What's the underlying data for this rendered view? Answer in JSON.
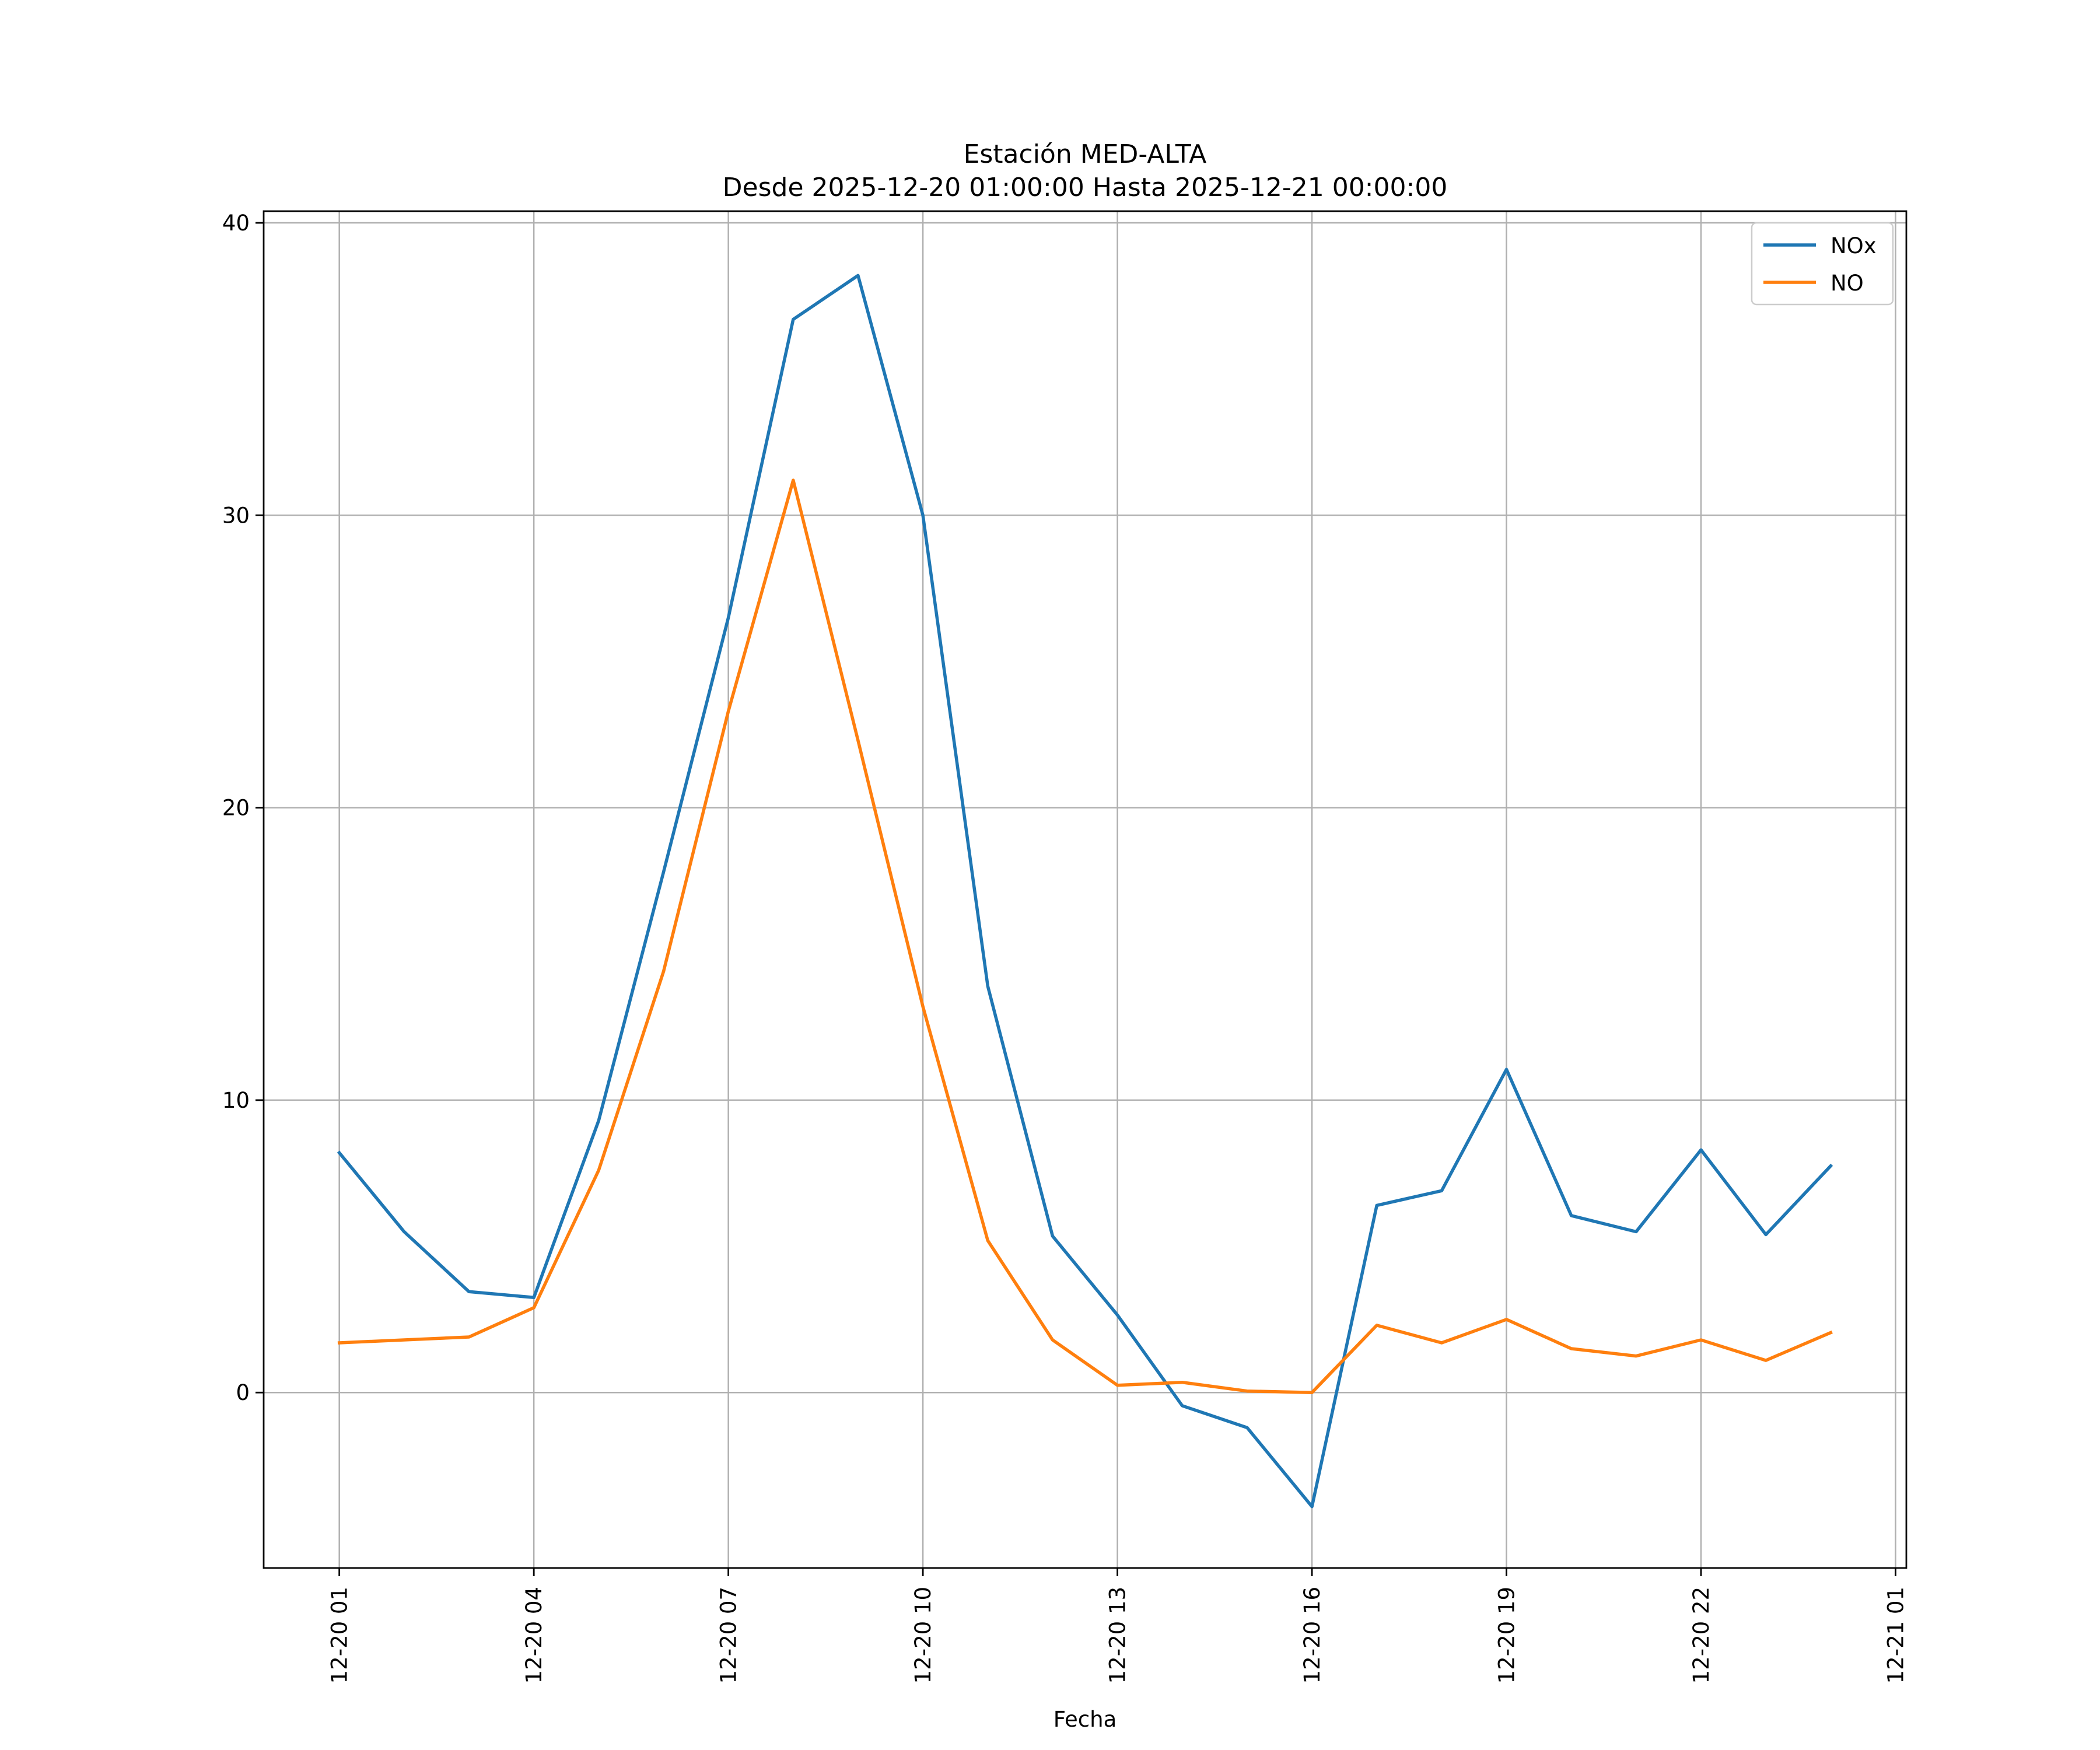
{
  "chart_data": {
    "type": "line",
    "title": "Estación MED-ALTA",
    "subtitle": "Desde 2025-12-20 01:00:00 Hasta 2025-12-21 00:00:00",
    "xlabel": "Fecha",
    "ylabel": "",
    "x": [
      "2025-12-20 01:00",
      "2025-12-20 02:00",
      "2025-12-20 03:00",
      "2025-12-20 04:00",
      "2025-12-20 05:00",
      "2025-12-20 06:00",
      "2025-12-20 07:00",
      "2025-12-20 08:00",
      "2025-12-20 09:00",
      "2025-12-20 10:00",
      "2025-12-20 11:00",
      "2025-12-20 12:00",
      "2025-12-20 13:00",
      "2025-12-20 14:00",
      "2025-12-20 15:00",
      "2025-12-20 16:00",
      "2025-12-20 17:00",
      "2025-12-20 18:00",
      "2025-12-20 19:00",
      "2025-12-20 20:00",
      "2025-12-20 21:00",
      "2025-12-20 22:00",
      "2025-12-20 23:00",
      "2025-12-21 00:00"
    ],
    "series": [
      {
        "name": "NOx",
        "color": "#1f77b4",
        "values": [
          8.2,
          5.5,
          3.45,
          3.25,
          9.3,
          17.8,
          26.5,
          36.7,
          38.2,
          30.0,
          13.9,
          5.35,
          2.65,
          -0.45,
          -1.2,
          -3.9,
          6.4,
          6.9,
          11.05,
          6.05,
          5.5,
          8.3,
          5.4,
          7.75
        ]
      },
      {
        "name": "NO",
        "color": "#ff7f0e",
        "values": [
          1.7,
          1.8,
          1.9,
          2.9,
          7.6,
          14.4,
          23.3,
          31.2,
          22.3,
          13.2,
          5.2,
          1.8,
          0.25,
          0.35,
          0.05,
          0.0,
          2.3,
          1.7,
          2.5,
          1.5,
          1.25,
          1.8,
          1.1,
          2.05
        ]
      }
    ],
    "xticks": [
      "12-20 01",
      "12-20 04",
      "12-20 07",
      "12-20 10",
      "12-20 13",
      "12-20 16",
      "12-20 19",
      "12-20 22",
      "12-21 01"
    ],
    "xtick_times": [
      "2025-12-20 01:00",
      "2025-12-20 04:00",
      "2025-12-20 07:00",
      "2025-12-20 10:00",
      "2025-12-20 13:00",
      "2025-12-20 16:00",
      "2025-12-20 19:00",
      "2025-12-20 22:00",
      "2025-12-21 01:00"
    ],
    "yticks": [
      0,
      10,
      20,
      30,
      40
    ],
    "xlim": [
      "2025-12-19 23:50",
      "2025-12-21 01:10"
    ],
    "ylim": [
      -6.0,
      40.4
    ],
    "grid": true,
    "legend": "top-right"
  }
}
